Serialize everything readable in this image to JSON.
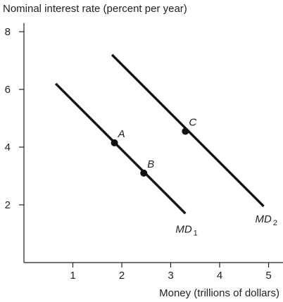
{
  "chart_data": {
    "type": "line",
    "ylabel": "Nominal interest rate (percent per year)",
    "xlabel": "Money (trillions of dollars)",
    "xlim": [
      0,
      5.3
    ],
    "ylim": [
      0,
      8.3
    ],
    "x_ticks": [
      1,
      2,
      3,
      4,
      5
    ],
    "y_ticks": [
      2,
      4,
      6,
      8
    ],
    "grid": false,
    "series": [
      {
        "name": "MD",
        "subscript": "1",
        "color": "#111111",
        "points": [
          {
            "x": 0.65,
            "y": 6.2
          },
          {
            "x": 3.3,
            "y": 1.7
          }
        ]
      },
      {
        "name": "MD",
        "subscript": "2",
        "color": "#111111",
        "points": [
          {
            "x": 1.8,
            "y": 7.2
          },
          {
            "x": 4.9,
            "y": 1.95
          }
        ]
      }
    ],
    "points": [
      {
        "label": "A",
        "x": 1.85,
        "y": 4.15
      },
      {
        "label": "B",
        "x": 2.45,
        "y": 3.1
      },
      {
        "label": "C",
        "x": 3.3,
        "y": 4.55
      }
    ]
  }
}
